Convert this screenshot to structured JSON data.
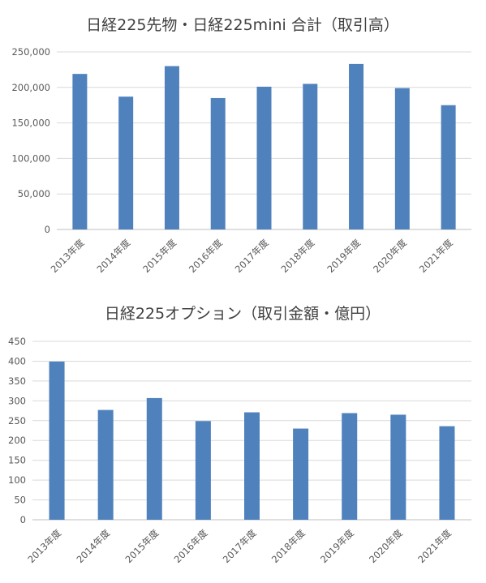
{
  "chart_data": [
    {
      "type": "bar",
      "title": "日経225先物・日経225mini 合計（取引高）",
      "categories": [
        "2013年度",
        "2014年度",
        "2015年度",
        "2016年度",
        "2017年度",
        "2018年度",
        "2019年度",
        "2020年度",
        "2021年度"
      ],
      "values": [
        219000,
        187000,
        230000,
        185000,
        201000,
        205000,
        233000,
        199000,
        175000
      ],
      "y_ticks": [
        "0",
        "50,000",
        "100,000",
        "150,000",
        "200,000",
        "250,000"
      ],
      "ylim": [
        0,
        250000
      ],
      "bar_color": "#4f81bd",
      "grid": true
    },
    {
      "type": "bar",
      "title": "日経225オプション（取引金額・億円）",
      "categories": [
        "2013年度",
        "2014年度",
        "2015年度",
        "2016年度",
        "2017年度",
        "2018年度",
        "2019年度",
        "2020年度",
        "2021年度"
      ],
      "values": [
        399,
        277,
        307,
        249,
        271,
        230,
        269,
        265,
        236
      ],
      "y_ticks": [
        "0",
        "50",
        "100",
        "150",
        "200",
        "250",
        "300",
        "350",
        "400",
        "450"
      ],
      "ylim": [
        0,
        450
      ],
      "bar_color": "#4f81bd",
      "grid": true
    }
  ]
}
